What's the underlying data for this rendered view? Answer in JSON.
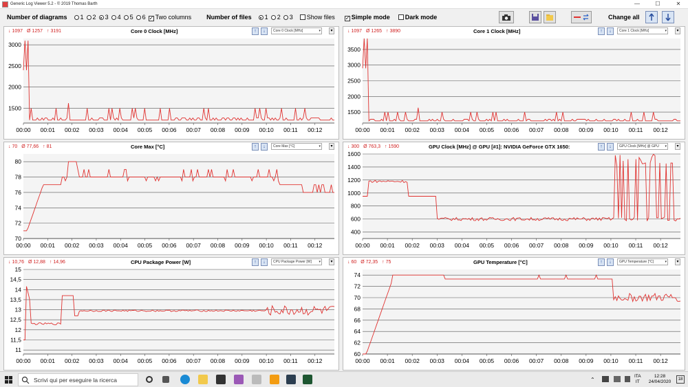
{
  "window": {
    "title": "Generic Log Viewer 5.2 - © 2019 Thomas Barth",
    "minimize": "—",
    "maximize": "☐",
    "close": "✕"
  },
  "toolbar": {
    "num_diagrams_label": "Number of diagrams",
    "diagram_options": [
      "1",
      "2",
      "3",
      "4",
      "5",
      "6"
    ],
    "diagram_selected": "3",
    "two_columns_label": "Two columns",
    "num_files_label": "Number of files",
    "file_options": [
      "1",
      "2",
      "3"
    ],
    "file_selected": "1",
    "show_files_label": "Show files",
    "simple_mode_label": "Simple mode",
    "dark_mode_label": "Dark mode",
    "change_all_label": "Change all",
    "colors": {
      "line": "#e0312f",
      "stat": "#d02020",
      "button_bg": "#d8e4f4"
    }
  },
  "time_ticks": [
    "00:00",
    "00:01",
    "00:02",
    "00:03",
    "00:04",
    "00:05",
    "00:06",
    "00:07",
    "00:08",
    "00:09",
    "00:10",
    "00:11",
    "00:12"
  ],
  "panels": [
    {
      "title": "Core 0 Clock [MHz]",
      "select": "Core 0 Clock [MHz]",
      "stat_min": "↓ 1097",
      "stat_avg": "Ø 1257",
      "stat_max": "↑ 3191",
      "ylim": [
        1150,
        3150
      ],
      "yticks": [
        "1500",
        "2000",
        "2500",
        "3000"
      ],
      "ytick_vals": [
        1500,
        2000,
        2500,
        3000
      ]
    },
    {
      "title": "Core 1 Clock [MHz]",
      "select": "Core 1 Clock [MHz]",
      "stat_min": "↓ 1097",
      "stat_avg": "Ø 1265",
      "stat_max": "↑ 3890",
      "ylim": [
        1150,
        3850
      ],
      "yticks": [
        "1500",
        "2000",
        "2500",
        "3000",
        "3500"
      ],
      "ytick_vals": [
        1500,
        2000,
        2500,
        3000,
        3500
      ]
    },
    {
      "title": "Core Max [°C]",
      "select": "Core Max [°C]",
      "stat_min": "↓ 70",
      "stat_avg": "Ø 77,66",
      "stat_max": "↑ 81",
      "ylim": [
        70,
        81
      ],
      "yticks": [
        "70",
        "72",
        "74",
        "76",
        "78",
        "80"
      ],
      "ytick_vals": [
        70,
        72,
        74,
        76,
        78,
        80
      ]
    },
    {
      "title": "GPU Clock [MHz] @ GPU [#1]: NVIDIA GeForce GTX 1650:",
      "select": "GPU Clock [MHz] @ GPU",
      "stat_min": "↓ 300",
      "stat_avg": "Ø 763,3",
      "stat_max": "↑ 1590",
      "ylim": [
        300,
        1600
      ],
      "yticks": [
        "400",
        "600",
        "800",
        "1000",
        "1200",
        "1400",
        "1600"
      ],
      "ytick_vals": [
        400,
        600,
        800,
        1000,
        1200,
        1400,
        1600
      ]
    },
    {
      "title": "CPU Package Power [W]",
      "select": "CPU Package Power [W]",
      "stat_min": "↓ 10,76",
      "stat_avg": "Ø 12,88",
      "stat_max": "↑ 14,96",
      "ylim": [
        10.8,
        15
      ],
      "yticks": [
        "11",
        "11,5",
        "12",
        "12,5",
        "13",
        "13,5",
        "14",
        "14,5",
        "15"
      ],
      "ytick_vals": [
        11,
        11.5,
        12,
        12.5,
        13,
        13.5,
        14,
        14.5,
        15
      ]
    },
    {
      "title": "GPU Temperature [°C]",
      "select": "GPU Temperature [°C]",
      "stat_min": "↓ 60",
      "stat_avg": "Ø 72,35",
      "stat_max": "↑ 75",
      "ylim": [
        60,
        75
      ],
      "yticks": [
        "60",
        "62",
        "64",
        "66",
        "68",
        "70",
        "72",
        "74"
      ],
      "ytick_vals": [
        60,
        62,
        64,
        66,
        68,
        70,
        72,
        74
      ]
    }
  ],
  "taskbar": {
    "search_placeholder": "Scrivi qui per eseguire la ricerca",
    "lang": "ITA",
    "lang2": "IT",
    "time": "12:28",
    "date": "24/04/2020",
    "notif_count": "18"
  }
}
